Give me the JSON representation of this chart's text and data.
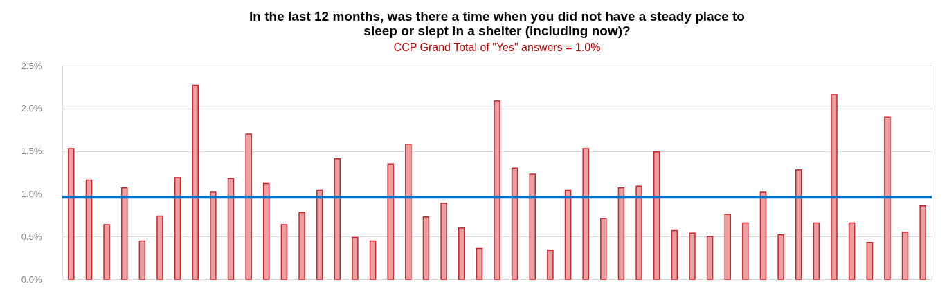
{
  "chart_data": {
    "type": "bar",
    "title": [
      "In the last 12 months, was there a time when you did not have a steady place to",
      "sleep or slept in a shelter (including now)?"
    ],
    "subtitle": "CCP Grand Total of \"Yes\" answers = 1.0%",
    "categories": [
      null,
      null,
      null,
      null,
      null,
      null,
      null,
      null,
      null,
      null,
      null,
      null,
      null,
      null,
      null,
      null,
      null,
      null,
      null,
      null,
      null,
      null,
      null,
      null,
      null,
      null,
      null,
      null,
      null,
      null,
      null,
      null,
      null,
      null,
      null,
      null,
      null,
      null,
      null,
      null,
      null,
      null,
      null,
      null,
      null,
      null,
      null,
      null,
      null
    ],
    "values": [
      1.53,
      1.16,
      0.64,
      1.07,
      0.45,
      0.74,
      1.19,
      2.27,
      1.02,
      1.18,
      1.7,
      1.12,
      0.64,
      0.78,
      1.04,
      1.41,
      0.49,
      0.45,
      1.35,
      1.58,
      0.73,
      0.89,
      0.6,
      0.36,
      2.09,
      1.3,
      1.23,
      0.34,
      1.04,
      1.53,
      0.71,
      1.07,
      1.09,
      1.49,
      0.57,
      0.54,
      0.5,
      0.76,
      0.66,
      1.02,
      0.52,
      1.28,
      0.66,
      2.16,
      0.66,
      0.43,
      1.9,
      0.55,
      0.86
    ],
    "color": "#e8a0a0",
    "ylim": [
      0,
      2.5
    ],
    "yticks": [
      {
        "value": 0,
        "label": "0.0%"
      },
      {
        "value": 0.5,
        "label": "0.5%"
      },
      {
        "value": 1.0,
        "label": "1.0%"
      },
      {
        "value": 1.5,
        "label": "1.5%"
      },
      {
        "value": 2.0,
        "label": "2.0%"
      },
      {
        "value": 2.5,
        "label": "2.5%"
      }
    ],
    "ref_lines": [
      {
        "axis": "y",
        "value": 0.96,
        "color": "#0070c0"
      }
    ],
    "grid": "y"
  }
}
